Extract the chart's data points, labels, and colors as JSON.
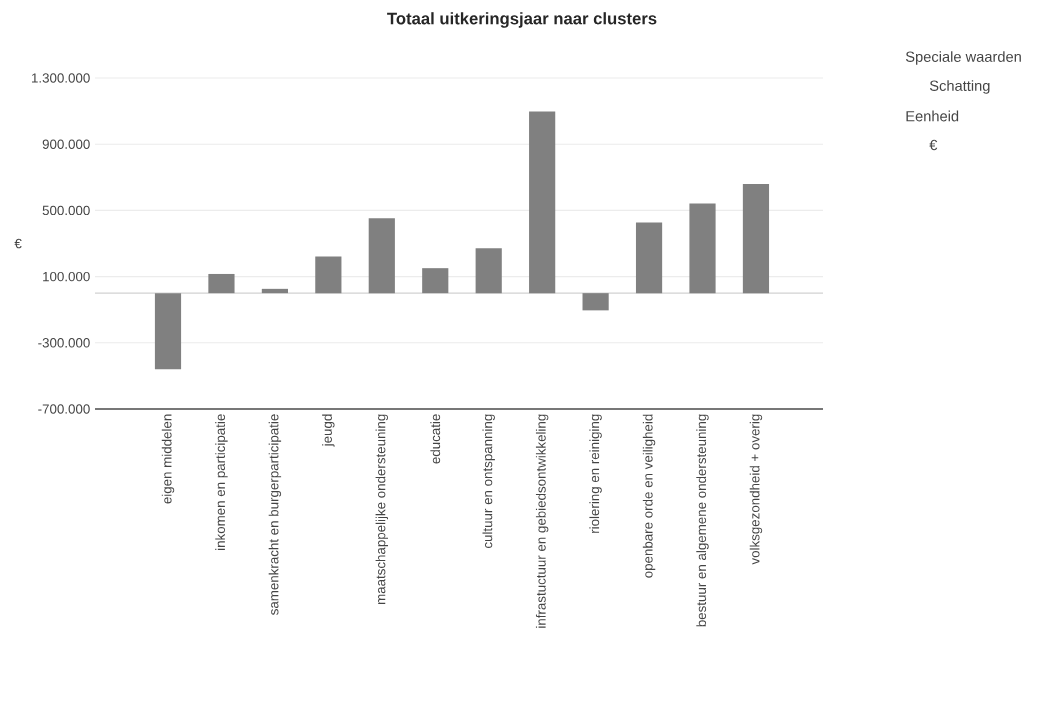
{
  "chart_data": {
    "type": "bar",
    "title": "Totaal uitkeringsjaar naar clusters",
    "ylabel": "€",
    "categories": [
      "eigen middelen",
      "inkomen en participatie",
      "samenkracht en burgerparticipatie",
      "jeugd",
      "maatschappelijke ondersteuning",
      "educatie",
      "cultuur en ontspanning",
      "infrastuctuur en gebiedsontwikkeling",
      "riolering en reiniging",
      "openbare orde en veiligheid",
      "bestuur en algemene ondersteuning",
      "volksgezondheid + overig"
    ],
    "values": [
      -460000,
      116000,
      26000,
      221000,
      452000,
      151000,
      271000,
      1097000,
      -104000,
      427000,
      541000,
      660000
    ],
    "color": "#808080",
    "ylim": [
      -700000,
      1300000
    ],
    "yticks": [
      {
        "value": -700000,
        "label": "-700.000"
      },
      {
        "value": -300000,
        "label": "-300.000"
      },
      {
        "value": 100000,
        "label": "100.000"
      },
      {
        "value": 500000,
        "label": "500.000"
      },
      {
        "value": 900000,
        "label": "900.000"
      },
      {
        "value": 1300000,
        "label": "1.300.000"
      }
    ],
    "grid": "y",
    "annotations": [
      "Speciale waarden",
      "Schatting",
      "Eenheid",
      "€"
    ]
  }
}
